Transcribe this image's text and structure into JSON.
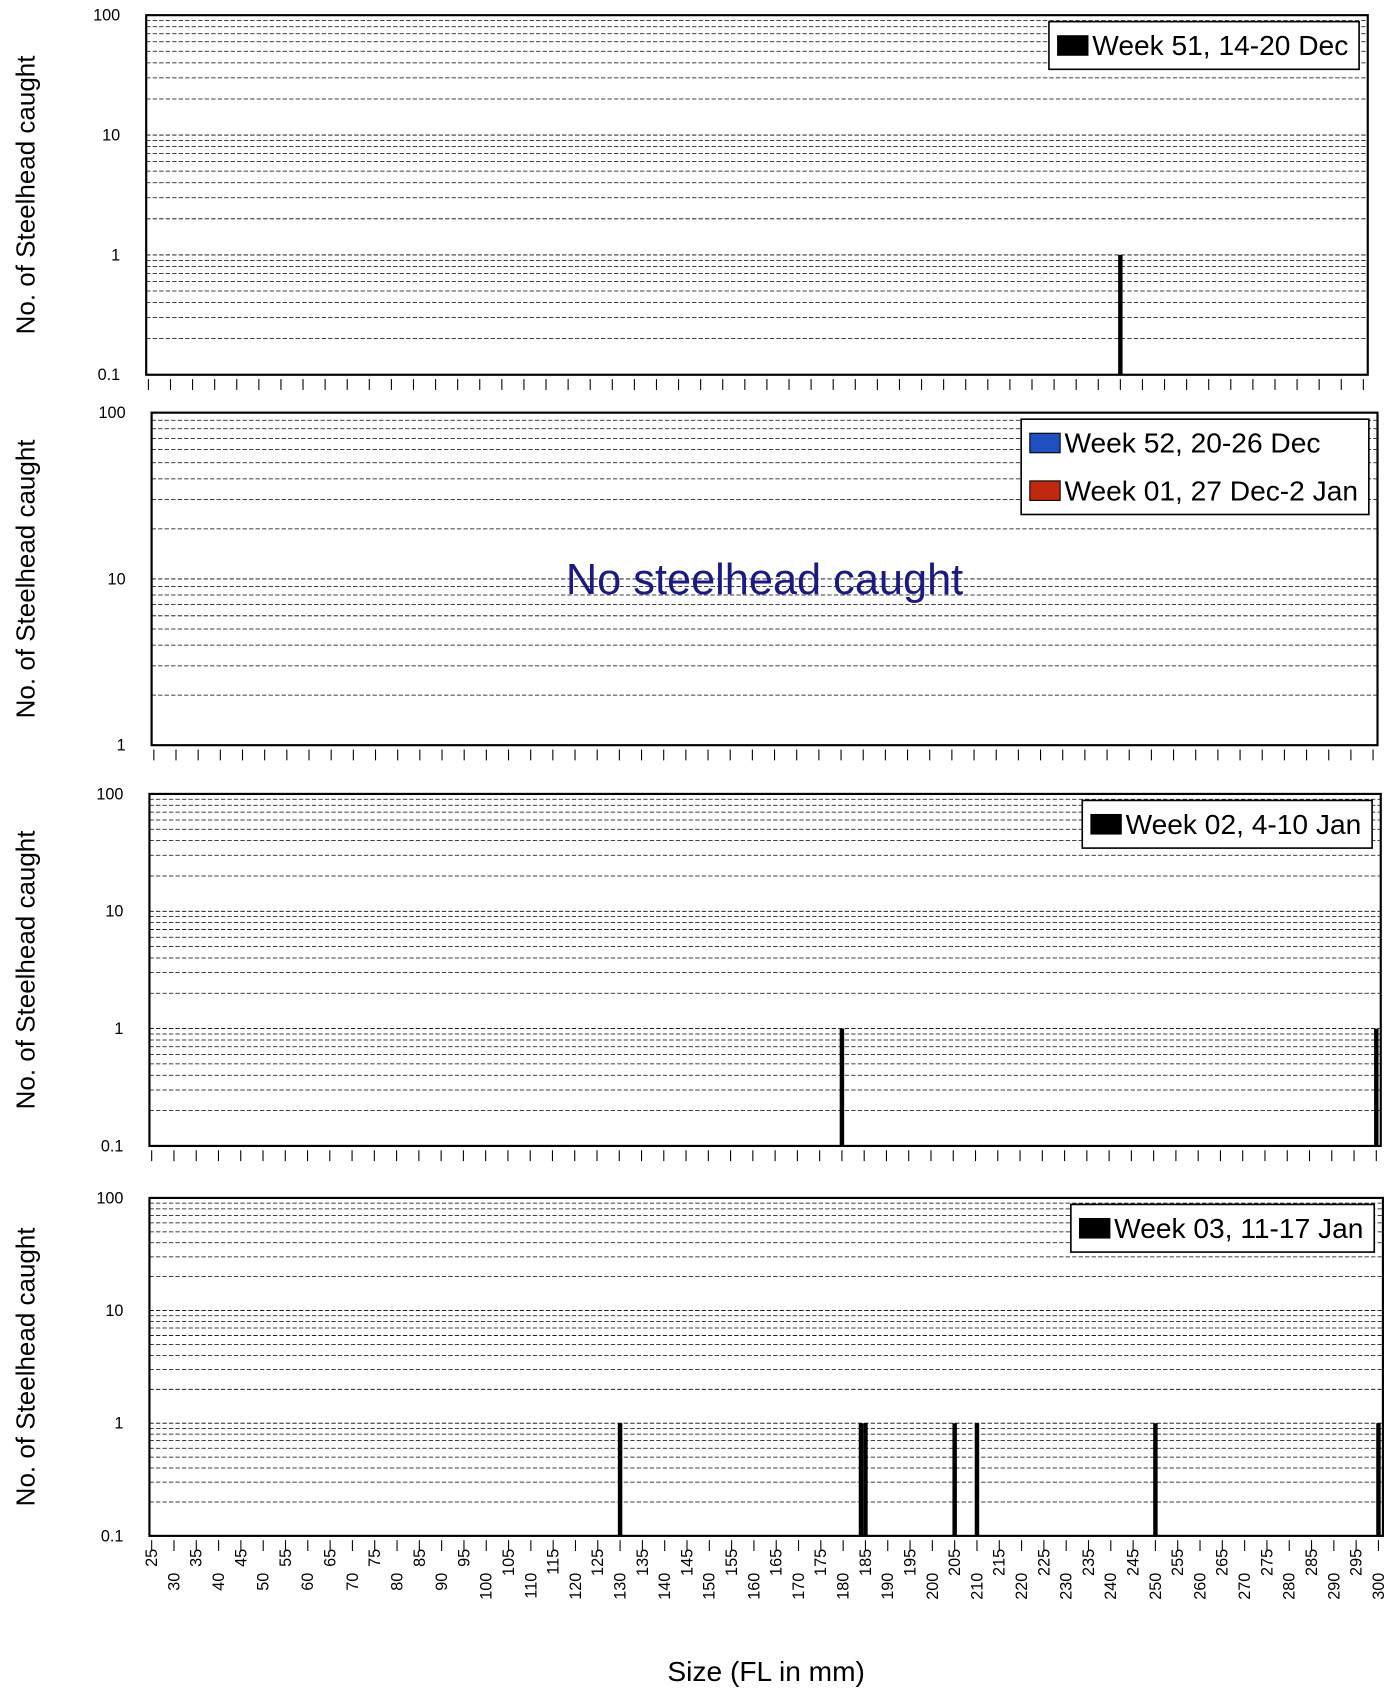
{
  "chart_data": [
    {
      "type": "bar",
      "ylabel": "No. of Steelhead caught",
      "log_y": true,
      "grid": true,
      "legend": "upper right",
      "xlim": [
        24.5,
        301
      ],
      "ylim": [
        0.1,
        100
      ],
      "yticks": [
        0.1,
        1,
        10,
        100
      ],
      "xticks": [
        25,
        30,
        35,
        40,
        45,
        50,
        55,
        60,
        65,
        70,
        75,
        80,
        85,
        90,
        95,
        100,
        105,
        110,
        115,
        120,
        125,
        130,
        135,
        140,
        145,
        150,
        155,
        160,
        165,
        170,
        175,
        180,
        185,
        190,
        195,
        200,
        205,
        210,
        215,
        220,
        225,
        230,
        235,
        240,
        245,
        250,
        255,
        260,
        265,
        270,
        275,
        280,
        285,
        290,
        295,
        300
      ],
      "series": [
        {
          "name": "Week 51, 14-20 Dec",
          "color": "#000000",
          "x": [
            245
          ],
          "values": [
            1
          ]
        }
      ]
    },
    {
      "type": "bar",
      "ylabel": "No. of Steelhead caught",
      "log_y": true,
      "grid": true,
      "legend": "upper right",
      "annotation": "No steelhead caught",
      "xlim": [
        24.5,
        301
      ],
      "ylim": [
        1,
        100
      ],
      "yticks": [
        1,
        10,
        100
      ],
      "xticks": [
        25,
        30,
        35,
        40,
        45,
        50,
        55,
        60,
        65,
        70,
        75,
        80,
        85,
        90,
        95,
        100,
        105,
        110,
        115,
        120,
        125,
        130,
        135,
        140,
        145,
        150,
        155,
        160,
        165,
        170,
        175,
        180,
        185,
        190,
        195,
        200,
        205,
        210,
        215,
        220,
        225,
        230,
        235,
        240,
        245,
        250,
        255,
        260,
        265,
        270,
        275,
        280,
        285,
        290,
        295,
        300
      ],
      "series": [
        {
          "name": "Week 52, 20-26 Dec",
          "color": "#1f4fc0",
          "x": [],
          "values": []
        },
        {
          "name": "Week 01, 27 Dec-2 Jan",
          "color": "#c0280f",
          "x": [],
          "values": []
        }
      ]
    },
    {
      "type": "bar",
      "ylabel": "No. of Steelhead caught",
      "log_y": true,
      "grid": true,
      "legend": "upper right",
      "xlim": [
        24.5,
        301
      ],
      "ylim": [
        0.1,
        100
      ],
      "yticks": [
        0.1,
        1,
        10,
        100
      ],
      "xticks": [
        25,
        30,
        35,
        40,
        45,
        50,
        55,
        60,
        65,
        70,
        75,
        80,
        85,
        90,
        95,
        100,
        105,
        110,
        115,
        120,
        125,
        130,
        135,
        140,
        145,
        150,
        155,
        160,
        165,
        170,
        175,
        180,
        185,
        190,
        195,
        200,
        205,
        210,
        215,
        220,
        225,
        230,
        235,
        240,
        245,
        250,
        255,
        260,
        265,
        270,
        275,
        280,
        285,
        290,
        295,
        300
      ],
      "series": [
        {
          "name": "Week 02, 4-10 Jan",
          "color": "#000000",
          "x": [
            180,
            300
          ],
          "values": [
            1,
            1
          ]
        }
      ]
    },
    {
      "type": "bar",
      "ylabel": "No. of Steelhead caught",
      "xlabel": "Size (FL in mm)",
      "log_y": true,
      "grid": true,
      "legend": "upper right",
      "xlim": [
        24.5,
        301
      ],
      "ylim": [
        0.1,
        100
      ],
      "yticks": [
        0.1,
        1,
        10,
        100
      ],
      "xticks": [
        25,
        30,
        35,
        40,
        45,
        50,
        55,
        60,
        65,
        70,
        75,
        80,
        85,
        90,
        95,
        100,
        105,
        110,
        115,
        120,
        125,
        130,
        135,
        140,
        145,
        150,
        155,
        160,
        165,
        170,
        175,
        180,
        185,
        190,
        195,
        200,
        205,
        210,
        215,
        220,
        225,
        230,
        235,
        240,
        245,
        250,
        255,
        260,
        265,
        270,
        275,
        280,
        285,
        290,
        295,
        300
      ],
      "series": [
        {
          "name": "Week 03, 11-17 Jan",
          "color": "#000000",
          "x": [
            130,
            184,
            185,
            205,
            210,
            250,
            300
          ],
          "values": [
            1,
            1,
            1,
            1,
            1,
            1,
            1
          ]
        }
      ]
    }
  ]
}
